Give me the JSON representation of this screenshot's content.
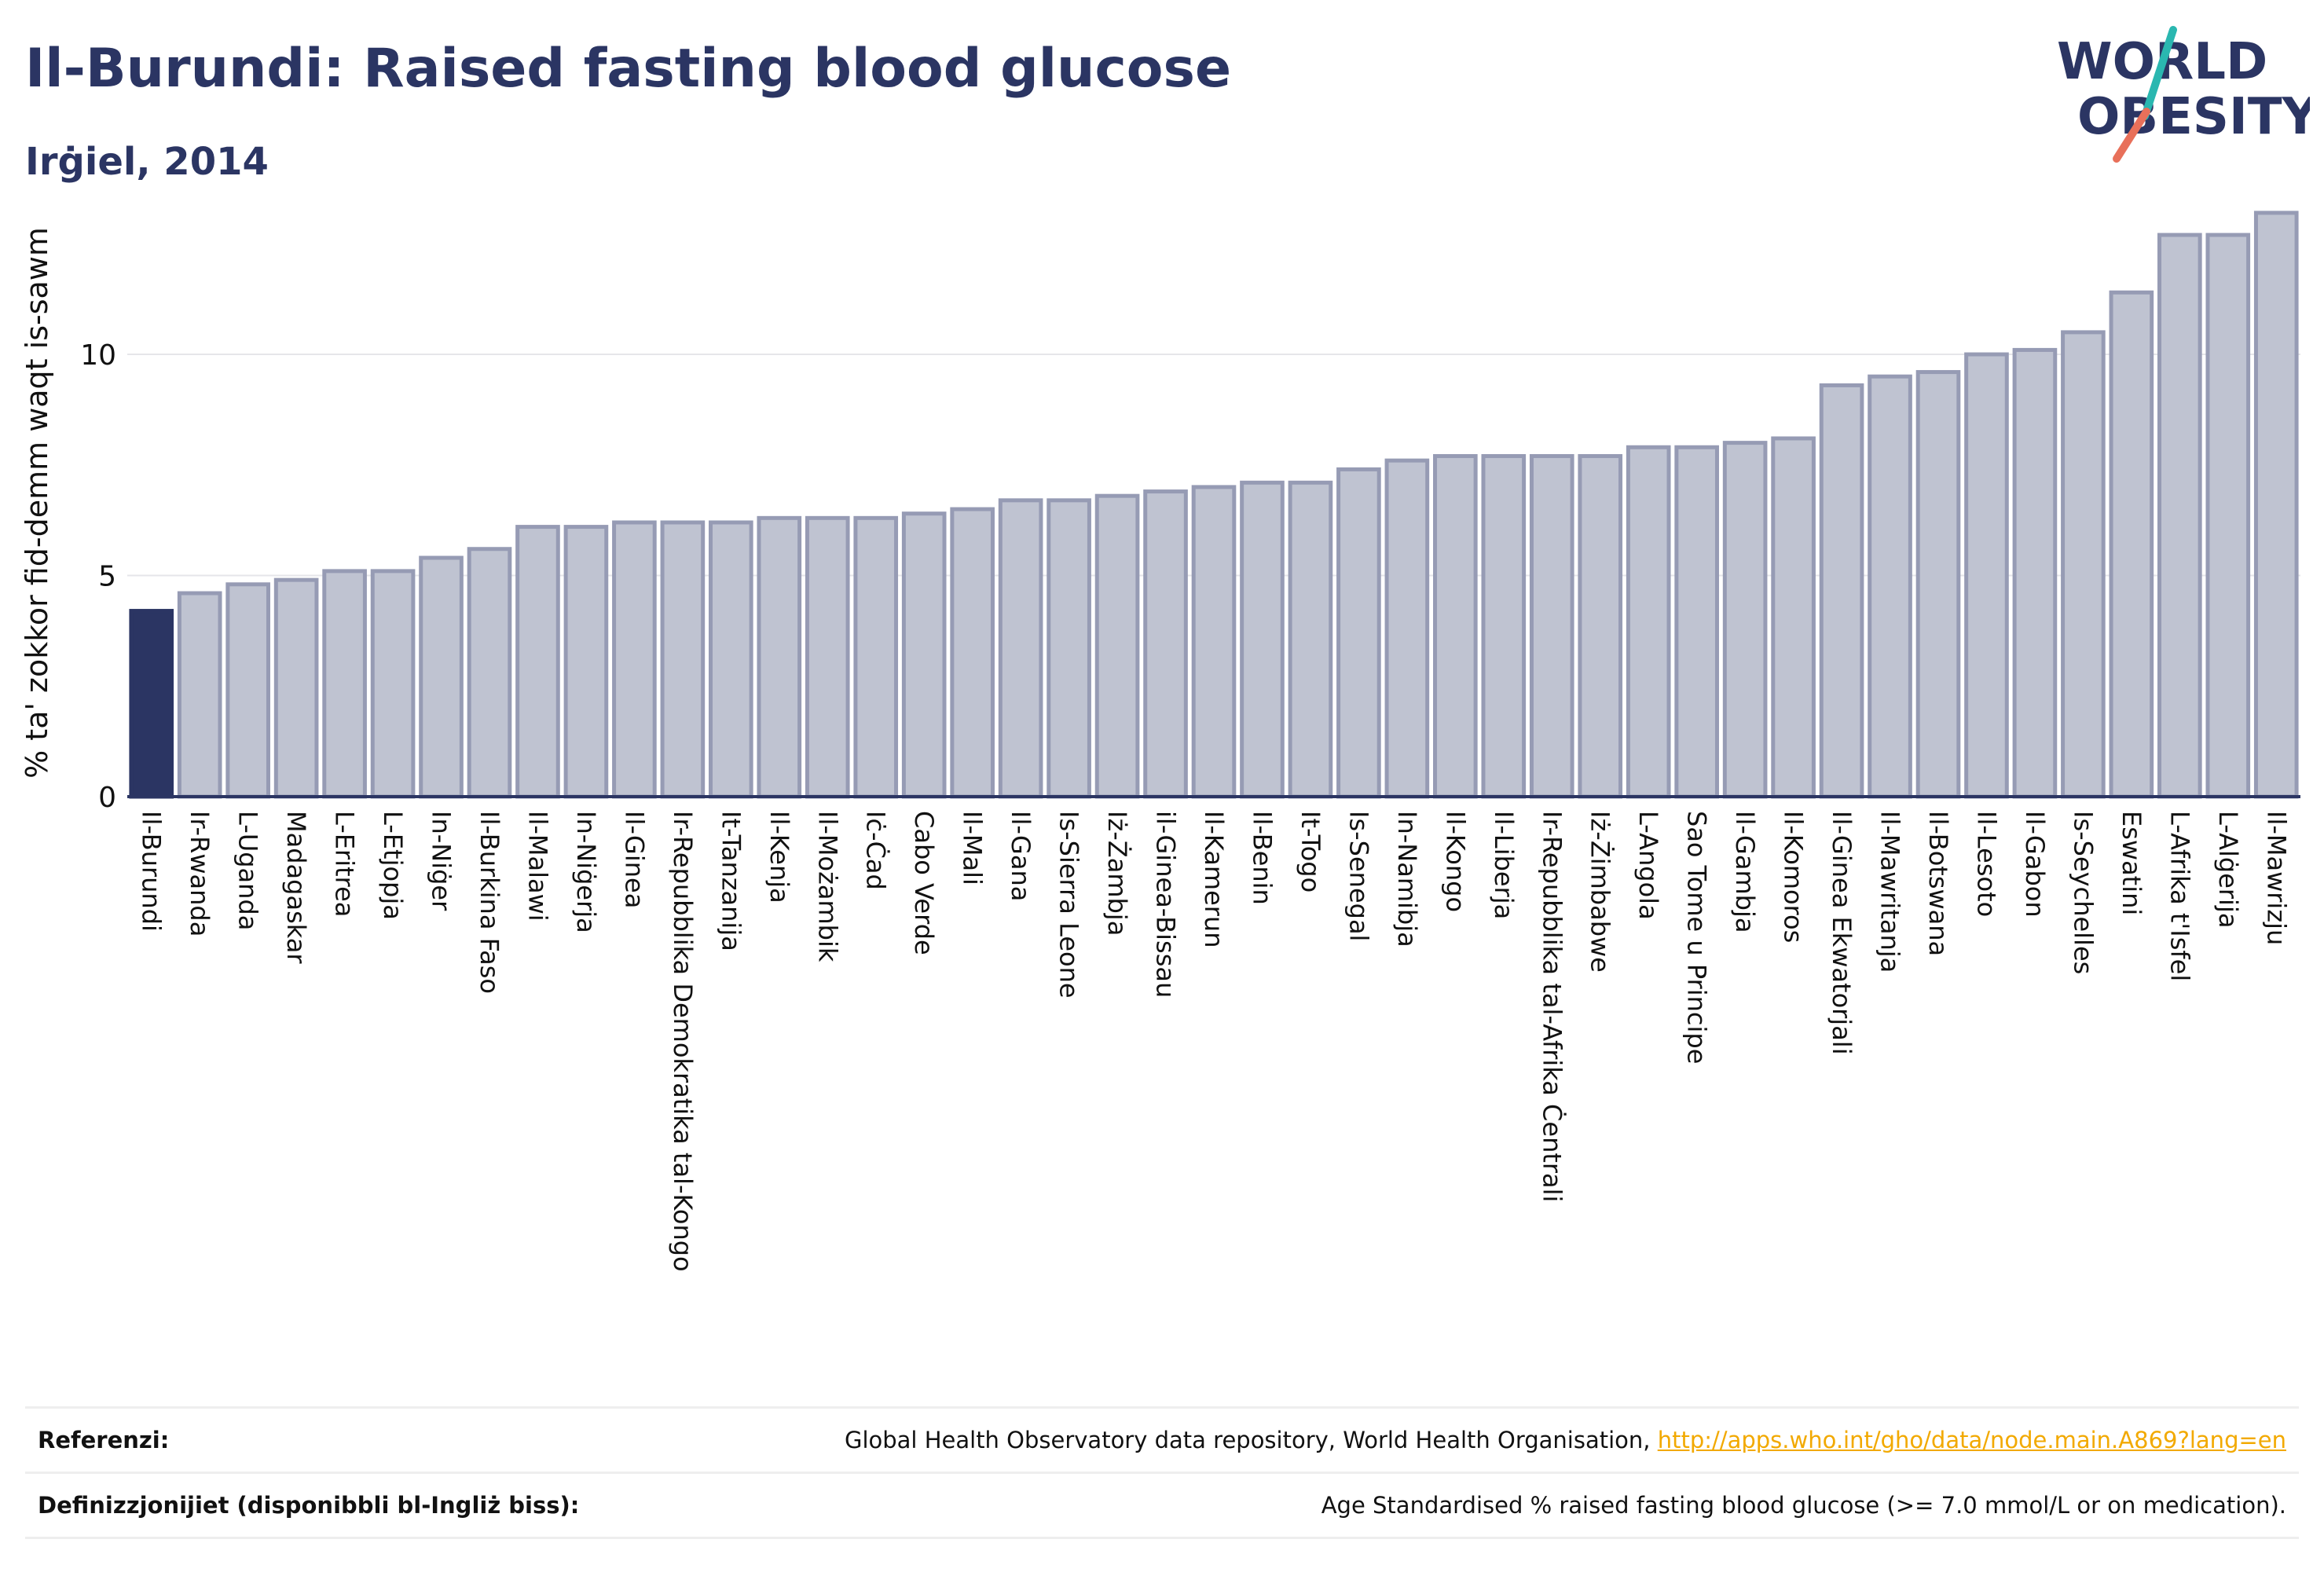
{
  "header": {
    "title": "Il-Burundi: Raised fasting blood glucose",
    "subtitle": "Irġiel, 2014"
  },
  "logo": {
    "line1": "WORLD",
    "line2": "OBESITY",
    "colors": {
      "text": "#2b3563",
      "slash_teal": "#2ab7b0",
      "slash_coral": "#e8705a"
    }
  },
  "chart_data": {
    "type": "bar",
    "title": "Il-Burundi: Raised fasting blood glucose",
    "subtitle": "Irġiel, 2014",
    "xlabel": "",
    "ylabel": "% ta' zokkor fid-demm waqt is-sawm",
    "ylim": [
      0,
      13.5
    ],
    "yticks": [
      0,
      5,
      10
    ],
    "grid": true,
    "highlight_index": 0,
    "colors": {
      "highlight": "#2b3563",
      "bar_fill": "#bfc3d1",
      "bar_stroke": "#969bb4",
      "axis": "#2b3563",
      "grid": "#e6e6ea"
    },
    "categories": [
      "Il-Burundi",
      "Ir-Rwanda",
      "L-Uganda",
      "Madagaskar",
      "L-Eritrea",
      "L-Etjopja",
      "In-Niġer",
      "Il-Burkina Faso",
      "Il-Malawi",
      "In-Niġerja",
      "Il-Ginea",
      "Ir-Repubblika Demokratika tal-Kongo",
      "It-Tanzanija",
      "Il-Kenja",
      "Il-Możambik",
      "Iċ-Ċad",
      "Cabo Verde",
      "Il-Mali",
      "Il-Gana",
      "Is-Sierra Leone",
      "Iż-Żambja",
      "il-Ginea-Bissau",
      "Il-Kamerun",
      "Il-Benin",
      "It-Togo",
      "Is-Senegal",
      "In-Namibja",
      "Il-Kongo",
      "Il-Liberja",
      "Ir-Repubblika tal-Afrika Ċentrali",
      "Iż-Żimbabwe",
      "L-Angola",
      "Sao Tome u Principe",
      "Il-Gambja",
      "Il-Komoros",
      "Il-Ginea Ekwatorjali",
      "Il-Mawritanja",
      "Il-Botswana",
      "Il-Lesoto",
      "Il-Gabon",
      "Is-Seychelles",
      "Eswatini",
      "L-Afrika t'Isfel",
      "L-Alġerija",
      "Il-Mawrizju"
    ],
    "values": [
      4.2,
      4.6,
      4.8,
      4.9,
      5.1,
      5.1,
      5.4,
      5.6,
      6.1,
      6.1,
      6.2,
      6.2,
      6.2,
      6.3,
      6.3,
      6.3,
      6.4,
      6.5,
      6.7,
      6.7,
      6.8,
      6.9,
      7.0,
      7.1,
      7.1,
      7.4,
      7.6,
      7.7,
      7.7,
      7.7,
      7.7,
      7.9,
      7.9,
      8.0,
      8.1,
      9.3,
      9.5,
      9.6,
      10.0,
      10.1,
      10.5,
      11.4,
      12.7,
      12.7,
      13.2
    ]
  },
  "footer": {
    "references_label": "Referenzi:",
    "references_text": "Global Health Observatory data repository, World Health Organisation, ",
    "references_link": "http://apps.who.int/gho/data/node.main.A869?lang=en",
    "definitions_label": "Definizzjonijiet (disponibbli bl-Ingliż biss):",
    "definitions_text": "Age Standardised % raised fasting blood glucose (>= 7.0 mmol/L or on medication)."
  }
}
